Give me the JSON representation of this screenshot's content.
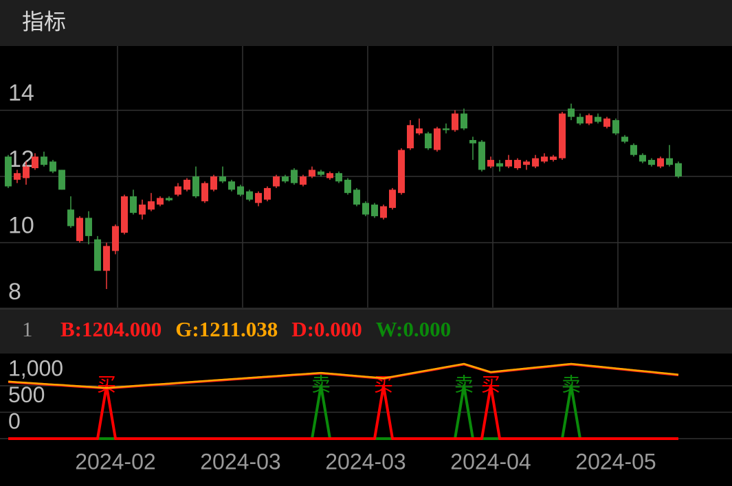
{
  "header": {
    "title": "指标"
  },
  "chart_data": [
    {
      "type": "candlestick",
      "up_color": "#f23c3c",
      "down_color": "#3d9c48",
      "open": [
        12.6,
        11.9,
        11.95,
        12.25,
        12.6,
        12.45,
        12.2,
        11.0,
        10.05,
        10.75,
        10.1,
        9.15,
        9.75,
        10.3,
        11.4,
        10.85,
        11.0,
        11.15,
        11.35,
        11.45,
        11.6,
        12.0,
        11.25,
        11.6,
        12.0,
        11.85,
        11.7,
        11.55,
        11.2,
        11.3,
        11.7,
        12.0,
        12.2,
        11.75,
        12.0,
        12.15,
        11.95,
        12.1,
        11.9,
        11.6,
        11.2,
        11.15,
        10.75,
        11.05,
        11.5,
        12.85,
        13.3,
        13.3,
        12.8,
        13.45,
        13.4,
        13.9,
        13.1,
        13.05,
        12.3,
        12.4,
        12.3,
        12.25,
        12.35,
        12.3,
        12.45,
        12.5,
        12.55,
        14.05,
        13.8,
        13.6,
        13.8,
        13.5,
        13.7,
        13.2,
        12.95,
        12.65,
        12.5,
        12.3,
        12.55,
        12.4
      ],
      "high": [
        12.65,
        12.2,
        12.45,
        12.7,
        12.75,
        12.5,
        12.2,
        11.4,
        10.8,
        10.95,
        10.2,
        10.0,
        10.55,
        11.45,
        11.6,
        11.3,
        11.5,
        11.4,
        11.4,
        11.8,
        11.95,
        12.3,
        11.85,
        12.05,
        12.3,
        11.9,
        11.75,
        11.6,
        11.55,
        11.7,
        12.05,
        12.05,
        12.25,
        12.05,
        12.3,
        12.2,
        12.15,
        12.15,
        11.95,
        11.65,
        11.25,
        11.2,
        11.15,
        11.65,
        12.85,
        13.7,
        13.75,
        13.35,
        13.5,
        13.6,
        14.0,
        14.05,
        13.2,
        13.1,
        12.6,
        12.5,
        12.65,
        12.55,
        12.5,
        12.65,
        12.7,
        12.65,
        13.95,
        14.2,
        13.9,
        13.9,
        13.9,
        13.8,
        13.75,
        13.25,
        13.0,
        12.7,
        12.55,
        12.6,
        12.95,
        12.45
      ],
      "low": [
        11.65,
        11.8,
        11.75,
        12.2,
        12.3,
        12.1,
        11.6,
        10.45,
        10.0,
        9.95,
        9.15,
        8.6,
        9.65,
        10.25,
        10.85,
        10.7,
        10.95,
        11.1,
        11.25,
        11.4,
        11.55,
        11.35,
        11.2,
        11.55,
        11.8,
        11.55,
        11.4,
        11.25,
        11.1,
        11.25,
        11.65,
        11.8,
        11.75,
        11.7,
        11.95,
        12.0,
        11.9,
        11.8,
        11.45,
        11.1,
        10.8,
        10.75,
        10.7,
        11.0,
        11.45,
        12.8,
        13.25,
        12.8,
        12.75,
        13.3,
        13.35,
        13.4,
        12.5,
        12.15,
        12.25,
        12.15,
        12.25,
        12.2,
        12.2,
        12.25,
        12.4,
        12.45,
        12.5,
        13.7,
        13.55,
        13.55,
        13.6,
        13.45,
        13.25,
        13.0,
        12.6,
        12.4,
        12.3,
        12.25,
        12.3,
        11.95
      ],
      "close": [
        11.7,
        12.1,
        12.3,
        12.6,
        12.35,
        12.15,
        11.6,
        10.5,
        10.75,
        10.2,
        9.15,
        9.9,
        10.5,
        11.4,
        10.9,
        11.15,
        11.25,
        11.35,
        11.28,
        11.7,
        11.9,
        11.4,
        11.8,
        12.0,
        11.85,
        11.6,
        11.45,
        11.3,
        11.5,
        11.65,
        12.0,
        11.85,
        11.8,
        12.0,
        12.2,
        12.05,
        12.1,
        11.85,
        11.5,
        11.15,
        10.85,
        10.8,
        11.1,
        11.6,
        12.8,
        13.55,
        13.45,
        12.85,
        13.45,
        13.4,
        13.9,
        13.45,
        13.0,
        12.2,
        12.5,
        12.3,
        12.5,
        12.5,
        12.45,
        12.55,
        12.6,
        12.6,
        13.9,
        13.8,
        13.6,
        13.85,
        13.65,
        13.75,
        13.3,
        13.05,
        12.65,
        12.45,
        12.35,
        12.55,
        12.35,
        12.0
      ],
      "ylim": [
        8,
        15.94
      ],
      "yticks": [
        8,
        10,
        12,
        14
      ],
      "grid": true
    },
    {
      "type": "line",
      "param": 1,
      "readouts": [
        {
          "label": "B:1204.000",
          "color": "#ff1a1a"
        },
        {
          "label": "G:1211.038",
          "color": "#ffa500"
        },
        {
          "label": "D:0.000",
          "color": "#ff1a1a"
        },
        {
          "label": "W:0.000",
          "color": "#0a8a0a"
        }
      ],
      "series": [
        {
          "color": "#ff1a1a",
          "values": [
            1073,
            1062,
            1051,
            1040,
            1029,
            1018,
            1008,
            997,
            986,
            975,
            964,
            953,
            965,
            977,
            989,
            1001,
            1013,
            1024,
            1036,
            1048,
            1060,
            1072,
            1084,
            1096,
            1108,
            1119,
            1131,
            1143,
            1155,
            1167,
            1179,
            1191,
            1203,
            1214,
            1226,
            1238,
            1223,
            1209,
            1194,
            1180,
            1165,
            1151,
            1136,
            1166,
            1196,
            1227,
            1257,
            1287,
            1317,
            1348,
            1378,
            1408,
            1356,
            1305,
            1253,
            1270,
            1287,
            1305,
            1322,
            1339,
            1356,
            1373,
            1391,
            1408,
            1391,
            1374,
            1357,
            1340,
            1323,
            1306,
            1289,
            1272,
            1255,
            1238,
            1221,
            1204
          ]
        },
        {
          "color": "#ffa500",
          "values": [
            1080,
            1069,
            1058,
            1047,
            1036,
            1025,
            1015,
            1004,
            993,
            982,
            971,
            960,
            972,
            984,
            996,
            1008,
            1020,
            1031,
            1043,
            1055,
            1067,
            1079,
            1091,
            1103,
            1115,
            1126,
            1138,
            1150,
            1162,
            1174,
            1186,
            1198,
            1210,
            1221,
            1233,
            1245,
            1230,
            1216,
            1201,
            1187,
            1172,
            1158,
            1143,
            1173,
            1203,
            1234,
            1264,
            1294,
            1324,
            1355,
            1385,
            1415,
            1363,
            1312,
            1260,
            1277,
            1294,
            1312,
            1329,
            1346,
            1363,
            1380,
            1398,
            1415,
            1398,
            1381,
            1364,
            1347,
            1330,
            1313,
            1296,
            1279,
            1262,
            1245,
            1228,
            1211.038
          ]
        },
        {
          "color": "#ff0000",
          "marker_label": "买",
          "values": [
            0,
            0,
            0,
            0,
            0,
            0,
            0,
            0,
            0,
            0,
            0,
            1000,
            0,
            0,
            0,
            0,
            0,
            0,
            0,
            0,
            0,
            0,
            0,
            0,
            0,
            0,
            0,
            0,
            0,
            0,
            0,
            0,
            0,
            0,
            0,
            0,
            0,
            0,
            0,
            0,
            0,
            0,
            1000,
            0,
            0,
            0,
            0,
            0,
            0,
            0,
            0,
            0,
            0,
            0,
            1000,
            0,
            0,
            0,
            0,
            0,
            0,
            0,
            0,
            0,
            0,
            0,
            0,
            0,
            0,
            0,
            0,
            0,
            0,
            0,
            0,
            0
          ]
        },
        {
          "color": "#0a8a0a",
          "marker_label": "卖",
          "values": [
            0,
            0,
            0,
            0,
            0,
            0,
            0,
            0,
            0,
            0,
            0,
            0,
            0,
            0,
            0,
            0,
            0,
            0,
            0,
            0,
            0,
            0,
            0,
            0,
            0,
            0,
            0,
            0,
            0,
            0,
            0,
            0,
            0,
            0,
            0,
            1000,
            0,
            0,
            0,
            0,
            0,
            0,
            0,
            0,
            0,
            0,
            0,
            0,
            0,
            0,
            0,
            1000,
            0,
            0,
            0,
            0,
            0,
            0,
            0,
            0,
            0,
            0,
            0,
            1000,
            0,
            0,
            0,
            0,
            0,
            0,
            0,
            0,
            0,
            0,
            0,
            0
          ]
        }
      ],
      "xlim": [
        -0.92,
        81
      ],
      "xticks": [
        {
          "value": 12,
          "label": "2024-02"
        },
        {
          "value": 26,
          "label": "2024-03"
        },
        {
          "value": 40,
          "label": "2024-03"
        },
        {
          "value": 54,
          "label": "2024-04"
        },
        {
          "value": 68,
          "label": "2024-05"
        }
      ],
      "ylim": [
        0,
        1610
      ],
      "yticks": [
        0,
        500,
        {
          "value": 1000,
          "label": "1,000"
        }
      ],
      "grid": true
    }
  ]
}
